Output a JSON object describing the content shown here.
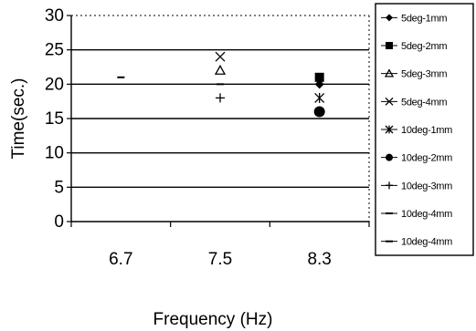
{
  "chart_data": {
    "type": "scatter",
    "title": "",
    "xlabel": "Frequency (Hz)",
    "ylabel": "Time(sec.)",
    "categories": [
      "6.7",
      "7.5",
      "8.3"
    ],
    "ylim": [
      0,
      30
    ],
    "yticks": [
      0,
      5,
      10,
      15,
      20,
      25,
      30
    ],
    "grid": "horizontal",
    "legend_position": "right",
    "series": [
      {
        "name": "5deg-1mm",
        "marker": "diamond",
        "values": [
          null,
          null,
          20
        ]
      },
      {
        "name": "5deg-2mm",
        "marker": "square",
        "values": [
          null,
          null,
          21
        ]
      },
      {
        "name": "5deg-3mm",
        "marker": "triangle",
        "values": [
          null,
          22,
          null
        ]
      },
      {
        "name": "5deg-4mm",
        "marker": "x",
        "values": [
          null,
          24,
          null
        ]
      },
      {
        "name": "10deg-1mm",
        "marker": "star",
        "values": [
          null,
          null,
          18
        ]
      },
      {
        "name": "10deg-2mm",
        "marker": "circle",
        "values": [
          null,
          null,
          16
        ]
      },
      {
        "name": "10deg-3mm",
        "marker": "plus",
        "values": [
          null,
          18,
          null
        ]
      },
      {
        "name": "10deg-4mm",
        "marker": "dash",
        "values": [
          21,
          20,
          null
        ]
      },
      {
        "name": "10deg-4mm",
        "marker": "dash",
        "values": [
          null,
          null,
          null
        ]
      }
    ]
  }
}
